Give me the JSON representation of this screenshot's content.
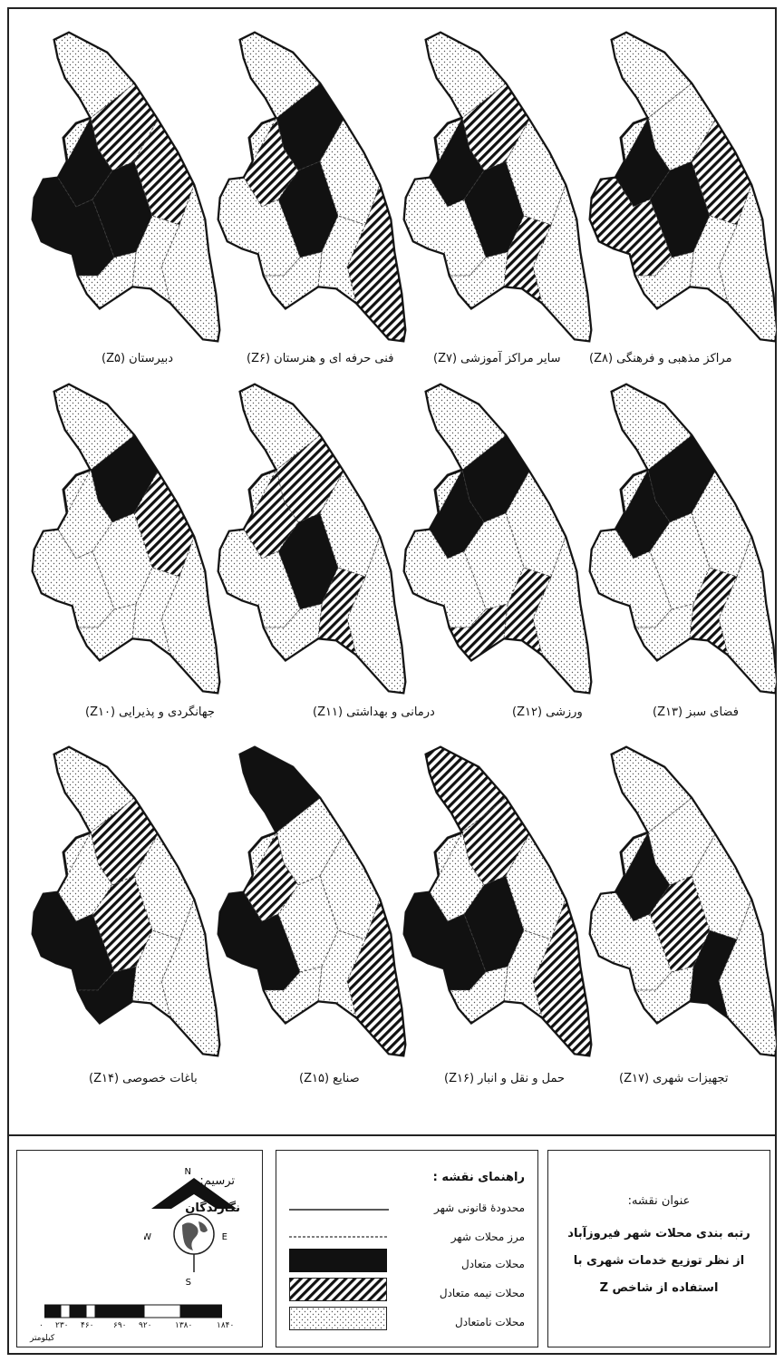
{
  "maps": [
    {
      "label": "دبیرستان (Z۵)"
    },
    {
      "label": "فنی حرفه ای و هنرستان (Z۶)"
    },
    {
      "label": "سایر مراکز آموزشی (Z۷)"
    },
    {
      "label": "مراکز مذهبی و فرهنگی (Z۸)"
    },
    {
      "label": "جهانگردی و پذیرایی (Z۱۰)"
    },
    {
      "label": "درمانی و بهداشتی (Z۱۱)"
    },
    {
      "label": "ورزشی (Z۱۲)"
    },
    {
      "label": "فضای سبز (Z۱۳)"
    },
    {
      "label": "باغات خصوصی (Z۱۴)"
    },
    {
      "label": "صنایع (Z۱۵)"
    },
    {
      "label": "حمل و نقل و انبار (Z۱۶)"
    },
    {
      "label": "تجهیزات شهری (Z۱۷)"
    }
  ],
  "title_box": {
    "heading": "عنوان نقشه:",
    "line1": "رتبه بندی محلات شهر فیروزآباد",
    "line2": "از نظر توزیع خدمات شهری با",
    "line3": "استفاده از شاخص Z"
  },
  "legend": {
    "heading": "راهنمای نقشه :",
    "items": [
      {
        "label": "محدودهٔ قانونی شهر",
        "type": "solid-line"
      },
      {
        "label": "مرز محلات شهر",
        "type": "dashed-line"
      },
      {
        "label": "محلات متعادل",
        "type": "black"
      },
      {
        "label": "محلات نیمه متعادل",
        "type": "hatched"
      },
      {
        "label": "محلات نامتعادل",
        "type": "dotted"
      }
    ]
  },
  "credit": {
    "heading": "ترسیم:",
    "name": "نگارندگان"
  },
  "compass": {
    "n": "N",
    "s": "S",
    "e": "E",
    "w": "W"
  },
  "scalebar": {
    "ticks": [
      "۰",
      "۲۳۰",
      "۴۶۰",
      "۶۹۰",
      "۹۲۰",
      "۱۳۸۰",
      "۱۸۴۰"
    ],
    "unit": "کیلومتر"
  },
  "colors": {
    "black": "#111111",
    "line": "#222222",
    "fill": "#ffffff"
  }
}
